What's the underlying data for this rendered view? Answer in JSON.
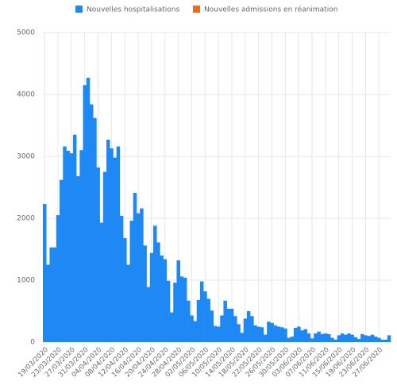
{
  "chart_data": {
    "type": "bar",
    "categories": [
      "19/03/2020",
      null,
      null,
      null,
      "23/03/2020",
      null,
      null,
      null,
      "27/03/2020",
      null,
      null,
      null,
      "31/03/2020",
      null,
      null,
      null,
      "04/04/2020",
      null,
      null,
      null,
      "08/04/2020",
      null,
      null,
      null,
      "12/04/2020",
      null,
      null,
      null,
      "16/04/2020",
      null,
      null,
      null,
      "20/04/2020",
      null,
      null,
      null,
      "24/04/2020",
      null,
      null,
      null,
      "28/04/2020",
      null,
      null,
      null,
      "02/05/2020",
      null,
      null,
      null,
      "06/05/2020",
      null,
      null,
      null,
      "10/05/2020",
      null,
      null,
      null,
      "14/05/2020",
      null,
      null,
      null,
      "18/05/2020",
      null,
      null,
      null,
      "22/05/2020",
      null,
      null,
      null,
      "26/05/2020",
      null,
      null,
      null,
      "30/05/2020",
      null,
      null,
      null,
      "03/06/2020",
      null,
      null,
      null,
      "07/06/2020",
      null,
      null,
      null,
      "11/06/2020",
      null,
      null,
      null,
      "15/06/2020",
      null,
      null,
      null,
      "19/06/2020",
      null,
      null,
      null,
      "23/06/2020",
      null,
      null,
      null,
      "27/06/2020",
      null,
      null,
      null
    ],
    "series": [
      {
        "name": "Nouvelles hospitalisations",
        "color": "#1e88f5",
        "values": [
          2230,
          1250,
          1530,
          1530,
          2050,
          2620,
          3160,
          3090,
          3050,
          3350,
          2680,
          3100,
          4150,
          4270,
          3840,
          3620,
          2820,
          1930,
          2750,
          3270,
          3130,
          2980,
          3160,
          2040,
          1680,
          1250,
          1960,
          2410,
          2080,
          2160,
          1560,
          890,
          1440,
          1880,
          1610,
          1400,
          1340,
          990,
          480,
          960,
          1320,
          1060,
          1040,
          670,
          430,
          340,
          680,
          980,
          820,
          700,
          510,
          260,
          250,
          430,
          670,
          540,
          540,
          420,
          290,
          150,
          380,
          500,
          420,
          270,
          250,
          240,
          120,
          330,
          310,
          270,
          250,
          240,
          220,
          70,
          90,
          230,
          250,
          190,
          210,
          140,
          60,
          140,
          170,
          130,
          140,
          130,
          70,
          40,
          110,
          140,
          120,
          140,
          120,
          80,
          50,
          130,
          110,
          100,
          120,
          90,
          70,
          40,
          40,
          110
        ]
      },
      {
        "name": "Nouvelles admissions en réanimation",
        "color": "#f06a25"
      }
    ],
    "ylim": [
      0,
      5000
    ],
    "yticks": [
      0,
      1000,
      2000,
      3000,
      4000,
      5000
    ],
    "grid": true
  }
}
